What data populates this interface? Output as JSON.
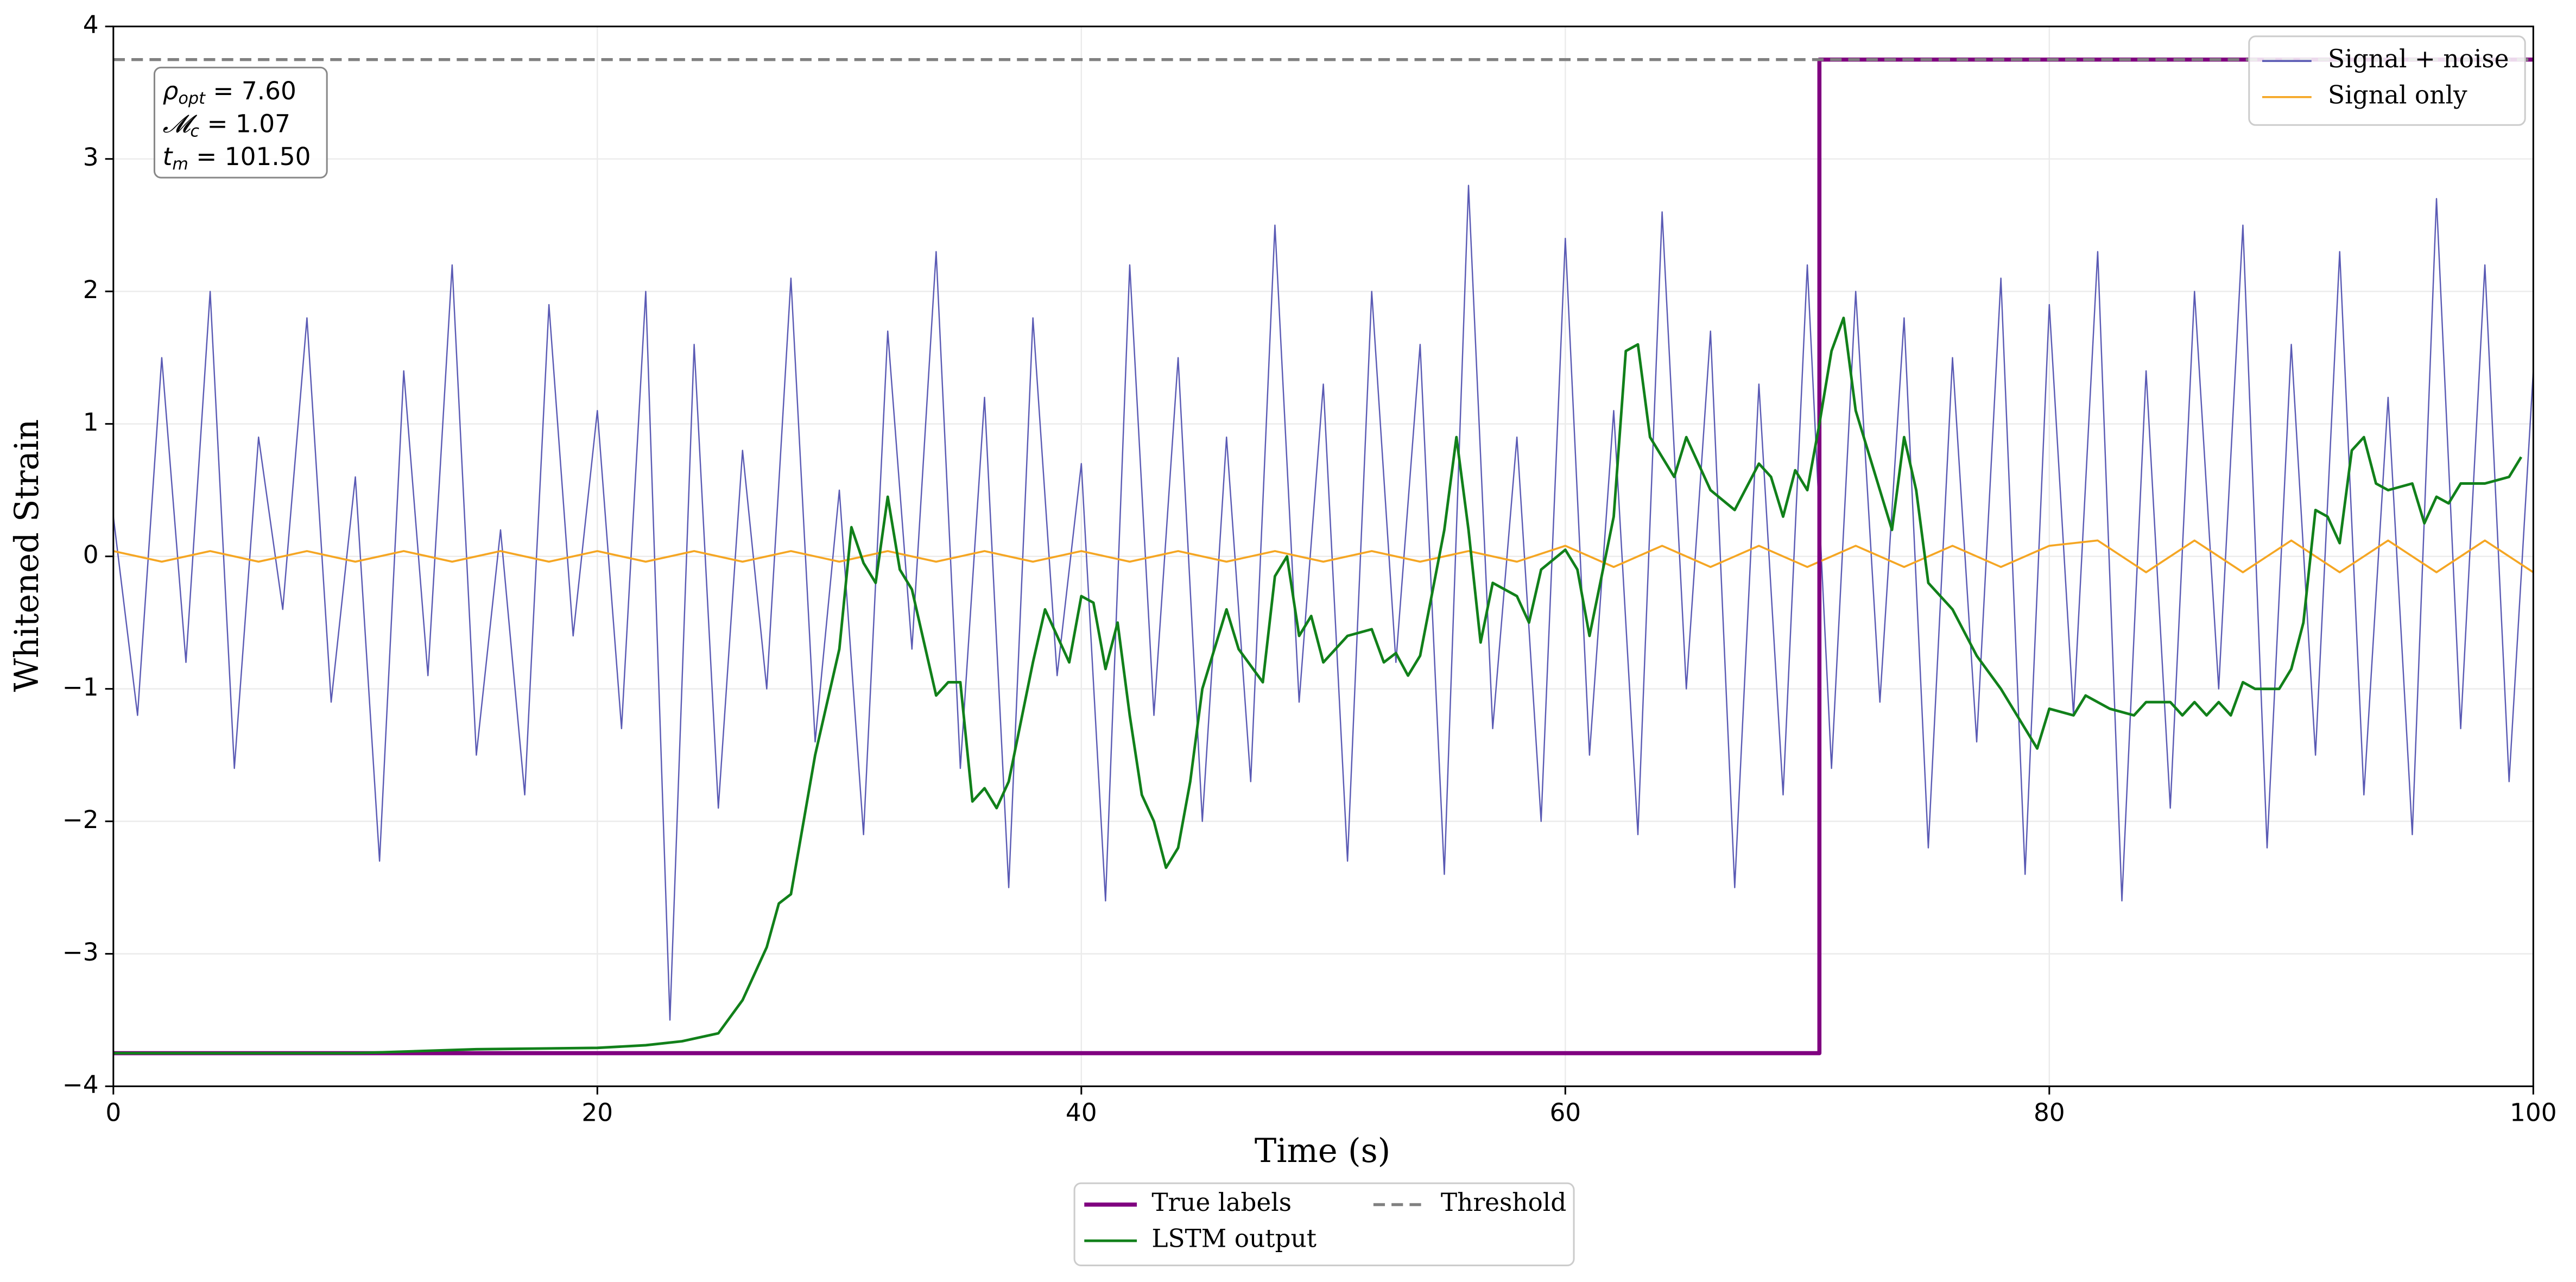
{
  "chart_data": {
    "type": "line",
    "xlabel": "Time (s)",
    "ylabel": "Whitened Strain",
    "xlim": [
      0,
      100
    ],
    "ylim": [
      -4,
      4
    ],
    "xticks": [
      0,
      20,
      40,
      60,
      80,
      100
    ],
    "yticks": [
      {
        "value": -4,
        "label": "−4"
      },
      {
        "value": -3,
        "label": "−3"
      },
      {
        "value": -2,
        "label": "−2"
      },
      {
        "value": -1,
        "label": "−1"
      },
      0,
      1,
      2,
      3,
      4
    ],
    "grid": true,
    "annotation": [
      {
        "symbol": "ρ",
        "sub": "opt",
        "text": " = 7.60"
      },
      {
        "symbol": "𝓜",
        "sub": "c",
        "text": " = 1.07"
      },
      {
        "symbol": "t",
        "sub": "m",
        "text": " = 101.50"
      }
    ],
    "series": [
      {
        "name": "Signal + noise",
        "color": "#5a5ab4",
        "linewidth": 0.8,
        "linestyle": "solid",
        "legend": "upper right",
        "x": [
          0,
          1,
          2,
          3,
          4,
          5,
          6,
          7,
          8,
          9,
          10,
          11,
          12,
          13,
          14,
          15,
          16,
          17,
          18,
          19,
          20,
          21,
          22,
          23,
          24,
          25,
          26,
          27,
          28,
          29,
          30,
          31,
          32,
          33,
          34,
          35,
          36,
          37,
          38,
          39,
          40,
          41,
          42,
          43,
          44,
          45,
          46,
          47,
          48,
          49,
          50,
          51,
          52,
          53,
          54,
          55,
          56,
          57,
          58,
          59,
          60,
          61,
          62,
          63,
          64,
          65,
          66,
          67,
          68,
          69,
          70,
          71,
          72,
          73,
          74,
          75,
          76,
          77,
          78,
          79,
          80,
          81,
          82,
          83,
          84,
          85,
          86,
          87,
          88,
          89,
          90,
          91,
          92,
          93,
          94,
          95,
          96,
          97,
          98,
          99,
          100
        ],
        "values": [
          0.3,
          -1.2,
          1.5,
          -0.8,
          2.0,
          -1.6,
          0.9,
          -0.4,
          1.8,
          -1.1,
          0.6,
          -2.3,
          1.4,
          -0.9,
          2.2,
          -1.5,
          0.2,
          -1.8,
          1.9,
          -0.6,
          1.1,
          -1.3,
          2.0,
          -3.5,
          1.6,
          -1.9,
          0.8,
          -1.0,
          2.1,
          -1.4,
          0.5,
          -2.1,
          1.7,
          -0.7,
          2.3,
          -1.6,
          1.2,
          -2.5,
          1.8,
          -0.9,
          0.7,
          -2.6,
          2.2,
          -1.2,
          1.5,
          -2.0,
          0.9,
          -1.7,
          2.5,
          -1.1,
          1.3,
          -2.3,
          2.0,
          -0.8,
          1.6,
          -2.4,
          2.8,
          -1.3,
          0.9,
          -2.0,
          2.4,
          -1.5,
          1.1,
          -2.1,
          2.6,
          -1.0,
          1.7,
          -2.5,
          1.3,
          -1.8,
          2.2,
          -1.6,
          2.0,
          -1.1,
          1.8,
          -2.2,
          1.5,
          -1.4,
          2.1,
          -2.4,
          1.9,
          -1.2,
          2.3,
          -2.6,
          1.4,
          -1.9,
          2.0,
          -1.0,
          2.5,
          -2.2,
          1.6,
          -1.5,
          2.3,
          -1.8,
          1.2,
          -2.1,
          2.7,
          -1.3,
          2.2,
          -1.7,
          1.4
        ]
      },
      {
        "name": "Signal only",
        "color": "#f5a623",
        "linewidth": 1.2,
        "linestyle": "solid",
        "legend": "upper right",
        "x": [
          0,
          2,
          4,
          6,
          8,
          10,
          12,
          14,
          16,
          18,
          20,
          22,
          24,
          26,
          28,
          30,
          32,
          34,
          36,
          38,
          40,
          42,
          44,
          46,
          48,
          50,
          52,
          54,
          56,
          58,
          60,
          62,
          64,
          66,
          68,
          70,
          72,
          74,
          76,
          78,
          80,
          82,
          84,
          86,
          88,
          90,
          92,
          94,
          96,
          98,
          100
        ],
        "values": [
          0.04,
          -0.04,
          0.04,
          -0.04,
          0.04,
          -0.04,
          0.04,
          -0.04,
          0.04,
          -0.04,
          0.04,
          -0.04,
          0.04,
          -0.04,
          0.04,
          -0.04,
          0.04,
          -0.04,
          0.04,
          -0.04,
          0.04,
          -0.04,
          0.04,
          -0.04,
          0.04,
          -0.04,
          0.04,
          -0.04,
          0.04,
          -0.04,
          0.08,
          -0.08,
          0.08,
          -0.08,
          0.08,
          -0.08,
          0.08,
          -0.08,
          0.08,
          -0.08,
          0.08,
          0.12,
          -0.12,
          0.12,
          -0.12,
          0.12,
          -0.12,
          0.12,
          -0.12,
          0.12,
          -0.12
        ]
      },
      {
        "name": "True labels",
        "color": "#800080",
        "linewidth": 2.5,
        "linestyle": "solid",
        "legend": "lower center",
        "x": [
          0,
          70.5,
          70.5,
          100
        ],
        "values": [
          -3.75,
          -3.75,
          3.75,
          3.75
        ]
      },
      {
        "name": "LSTM output",
        "color": "#11801a",
        "linewidth": 1.6,
        "linestyle": "solid",
        "legend": "lower center",
        "x": [
          0,
          10,
          15,
          20,
          22,
          23.5,
          25,
          26,
          27,
          27.5,
          28,
          29,
          30,
          30.5,
          31,
          31.5,
          32,
          32.5,
          33,
          34,
          34.5,
          35,
          35.5,
          36,
          36.5,
          37,
          38,
          38.5,
          39,
          39.5,
          40,
          40.5,
          41,
          41.5,
          42,
          42.5,
          43,
          43.5,
          44,
          44.5,
          45,
          46,
          46.5,
          47.5,
          48,
          48.5,
          49,
          49.5,
          50,
          51,
          52,
          52.5,
          53,
          53.5,
          54,
          55,
          55.5,
          56,
          56.5,
          57,
          58,
          58.5,
          59,
          60,
          60.5,
          61,
          62,
          62.5,
          63,
          63.5,
          64,
          64.5,
          65,
          66,
          67,
          68,
          68.5,
          69,
          69.5,
          70,
          70.5,
          71,
          71.5,
          72,
          73,
          73.5,
          74,
          74.5,
          75,
          76,
          77,
          78,
          79,
          79.5,
          80,
          81,
          81.5,
          82.5,
          83.5,
          84,
          85,
          85.5,
          86,
          86.5,
          87,
          87.5,
          88,
          88.5,
          89.5,
          90,
          90.5,
          91,
          91.5,
          92,
          92.5,
          93,
          93.5,
          94,
          95,
          95.5,
          96,
          96.5,
          97,
          98,
          99,
          99.5
        ],
        "values": [
          -3.75,
          -3.75,
          -3.72,
          -3.71,
          -3.69,
          -3.66,
          -3.6,
          -3.35,
          -2.95,
          -2.62,
          -2.55,
          -1.5,
          -0.7,
          0.22,
          -0.05,
          -0.2,
          0.45,
          -0.1,
          -0.25,
          -1.05,
          -0.95,
          -0.95,
          -1.85,
          -1.75,
          -1.9,
          -1.7,
          -0.8,
          -0.4,
          -0.6,
          -0.8,
          -0.3,
          -0.35,
          -0.85,
          -0.5,
          -1.2,
          -1.8,
          -2.0,
          -2.35,
          -2.2,
          -1.7,
          -1.0,
          -0.4,
          -0.7,
          -0.95,
          -0.15,
          0.0,
          -0.6,
          -0.45,
          -0.8,
          -0.6,
          -0.55,
          -0.8,
          -0.73,
          -0.9,
          -0.75,
          0.2,
          0.9,
          0.2,
          -0.65,
          -0.2,
          -0.3,
          -0.5,
          -0.1,
          0.05,
          -0.1,
          -0.6,
          0.3,
          1.55,
          1.6,
          0.9,
          0.75,
          0.6,
          0.9,
          0.5,
          0.35,
          0.7,
          0.6,
          0.3,
          0.65,
          0.5,
          1.0,
          1.55,
          1.8,
          1.1,
          0.5,
          0.2,
          0.9,
          0.5,
          -0.2,
          -0.4,
          -0.75,
          -1.0,
          -1.3,
          -1.45,
          -1.15,
          -1.2,
          -1.05,
          -1.15,
          -1.2,
          -1.1,
          -1.1,
          -1.2,
          -1.1,
          -1.2,
          -1.1,
          -1.2,
          -0.95,
          -1.0,
          -1.0,
          -0.85,
          -0.5,
          0.35,
          0.3,
          0.1,
          0.8,
          0.9,
          0.55,
          0.5,
          0.55,
          0.25,
          0.45,
          0.4,
          0.55,
          0.55,
          0.6,
          0.75
        ]
      },
      {
        "name": "Threshold",
        "color": "#808080",
        "linewidth": 1.8,
        "linestyle": "dashed",
        "legend": "lower center",
        "x": [
          0,
          100
        ],
        "values": [
          3.75,
          3.75
        ]
      }
    ]
  }
}
